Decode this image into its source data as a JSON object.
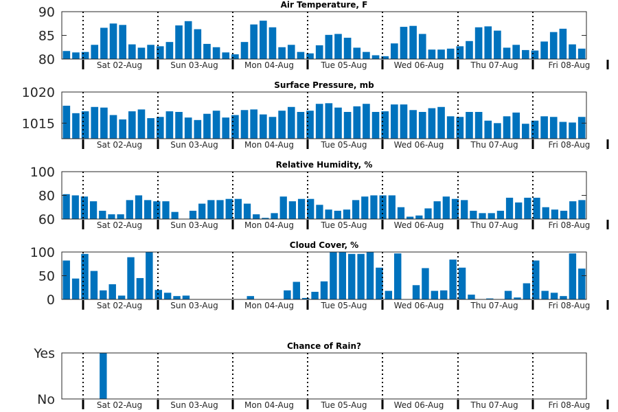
{
  "chart_data": [
    {
      "type": "bar",
      "title": "Air Temperature, F",
      "ylim": [
        80,
        90
      ],
      "yticks": [
        "80",
        "85",
        "90"
      ],
      "values": [
        81.7,
        81.4,
        81.5,
        83.0,
        86.6,
        87.5,
        87.2,
        83.1,
        82.4,
        83.0,
        82.7,
        83.6,
        87.1,
        88.0,
        86.3,
        83.2,
        82.5,
        81.4,
        81.0,
        83.6,
        87.3,
        88.1,
        86.7,
        82.5,
        83.0,
        81.5,
        81.2,
        82.9,
        85.1,
        85.3,
        84.5,
        82.4,
        81.5,
        80.8,
        80.6,
        83.3,
        86.8,
        87.0,
        85.3,
        82.0,
        82.0,
        82.2,
        82.7,
        83.8,
        86.7,
        86.9,
        86.0,
        82.4,
        83.0,
        81.9,
        81.8,
        83.7,
        85.7,
        86.4,
        83.1,
        82.2
      ]
    },
    {
      "type": "bar",
      "title": "Surface Pressure, mb",
      "ylim": [
        1012.5,
        1020
      ],
      "yticks": [
        "1015",
        "1020"
      ],
      "values": [
        1017.8,
        1016.6,
        1016.9,
        1017.6,
        1017.5,
        1016.3,
        1015.6,
        1016.9,
        1017.2,
        1015.8,
        1016.0,
        1016.9,
        1016.8,
        1015.9,
        1015.5,
        1016.5,
        1017.0,
        1015.9,
        1016.3,
        1017.1,
        1017.2,
        1016.4,
        1016.0,
        1017.0,
        1017.6,
        1016.8,
        1017.0,
        1018.1,
        1018.2,
        1017.5,
        1016.8,
        1017.7,
        1018.1,
        1016.8,
        1016.9,
        1018.0,
        1018.0,
        1017.1,
        1016.8,
        1017.4,
        1017.6,
        1016.1,
        1016.0,
        1016.8,
        1016.8,
        1015.4,
        1015.0,
        1016.1,
        1016.7,
        1014.9,
        1015.4,
        1016.1,
        1016.0,
        1015.2,
        1015.1,
        1016.0
      ]
    },
    {
      "type": "bar",
      "title": "Relative Humidity, %",
      "ylim": [
        60,
        100
      ],
      "yticks": [
        "60",
        "80",
        "100"
      ],
      "values": [
        81,
        80,
        79,
        75,
        67,
        64,
        64,
        76,
        80,
        76,
        75,
        75,
        66,
        60,
        67,
        73,
        76,
        76,
        77,
        77,
        73,
        64,
        61,
        65,
        79,
        75,
        77,
        77,
        72,
        68,
        67,
        68,
        76,
        79,
        80,
        80,
        80,
        70,
        62,
        63,
        69,
        75,
        79,
        77,
        76,
        67,
        65,
        65,
        67,
        78,
        74,
        78,
        78,
        70,
        68,
        67,
        75,
        76
      ]
    },
    {
      "type": "bar",
      "title": "Cloud Cover, %",
      "ylim": [
        0,
        100
      ],
      "yticks": [
        "0",
        "50",
        "100"
      ],
      "values": [
        82,
        44,
        96,
        60,
        19,
        32,
        8,
        89,
        45,
        100,
        20,
        14,
        7,
        8,
        0,
        0,
        0,
        0,
        0,
        0,
        7,
        0,
        0,
        0,
        19,
        37,
        3,
        16,
        38,
        100,
        100,
        96,
        96,
        100,
        67,
        18,
        97,
        0,
        30,
        66,
        18,
        19,
        84,
        67,
        10,
        0,
        2,
        0,
        18,
        4,
        34,
        82,
        18,
        14,
        7,
        97,
        65
      ]
    },
    {
      "type": "bar",
      "title": "Chance of Rain?",
      "yticks": [
        "No",
        "Yes"
      ],
      "values": [
        0,
        0,
        0,
        0,
        1,
        0,
        0,
        0,
        0,
        0,
        0,
        0,
        0,
        0,
        0,
        0,
        0,
        0,
        0,
        0,
        0,
        0,
        0,
        0,
        0,
        0,
        0,
        0,
        0,
        0,
        0,
        0,
        0,
        0,
        0,
        0,
        0,
        0,
        0,
        0,
        0,
        0,
        0,
        0,
        0,
        0,
        0,
        0,
        0,
        0,
        0,
        0,
        0,
        0,
        0,
        0,
        0
      ]
    }
  ],
  "days": [
    "Sat 02-Aug",
    "Sun 03-Aug",
    "Mon 04-Aug",
    "Tue 05-Aug",
    "Wed 06-Aug",
    "Thu 07-Aug",
    "Fri 08-Aug"
  ],
  "colors": {
    "bar": "#0072bd",
    "axis": "#262626",
    "divider": "#000000"
  }
}
